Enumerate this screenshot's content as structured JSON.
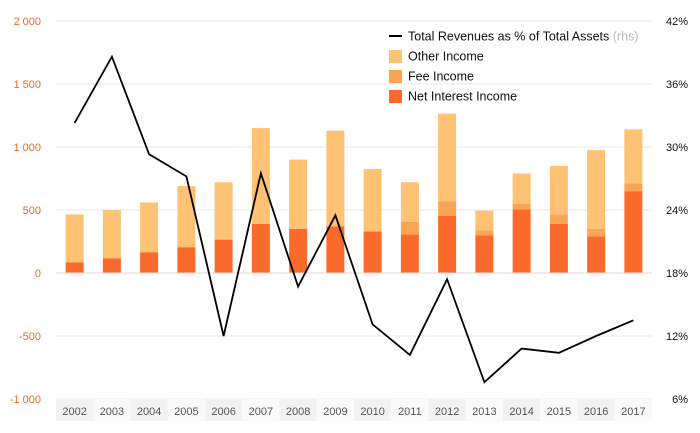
{
  "chart_data": {
    "type": "bar",
    "categories": [
      "2002",
      "2003",
      "2004",
      "2005",
      "2006",
      "2007",
      "2008",
      "2009",
      "2010",
      "2011",
      "2012",
      "2013",
      "2014",
      "2015",
      "2016",
      "2017"
    ],
    "series": [
      {
        "name": "Net Interest Income",
        "kind": "stacked-bar",
        "axis": "left",
        "color": "#fb6a2a",
        "values": [
          85,
          115,
          165,
          205,
          265,
          390,
          350,
          370,
          330,
          305,
          455,
          300,
          505,
          390,
          290,
          650
        ]
      },
      {
        "name": "Fee Income",
        "kind": "stacked-bar",
        "axis": "left",
        "color": "#fca456",
        "values": [
          0,
          0,
          0,
          0,
          0,
          0,
          0,
          0,
          0,
          100,
          115,
          40,
          45,
          75,
          60,
          60
        ]
      },
      {
        "name": "Other Income",
        "kind": "stacked-bar",
        "axis": "left",
        "color": "#fdc274",
        "values": [
          380,
          385,
          395,
          485,
          455,
          760,
          550,
          760,
          495,
          315,
          695,
          155,
          240,
          385,
          625,
          430
        ]
      },
      {
        "name": "Total Revenues as % of Total Assets",
        "name_note": "(rhs)",
        "kind": "line",
        "axis": "right",
        "color": "#000000",
        "values": [
          32.3,
          38.6,
          29.3,
          27.2,
          12.0,
          27.5,
          16.7,
          23.5,
          13.1,
          10.2,
          17.4,
          7.6,
          10.8,
          10.4,
          12.0,
          13.5
        ]
      }
    ],
    "y_left": {
      "ticks": [
        "2 000",
        "1 500",
        "1 000",
        "500",
        "0",
        "-500",
        "-1 000"
      ],
      "range": [
        -1000,
        2000
      ]
    },
    "y_right": {
      "ticks": [
        "42%",
        "36%",
        "30%",
        "24%",
        "18%",
        "12%",
        "6%"
      ],
      "range": [
        6,
        42
      ]
    },
    "legend_order": [
      "Total Revenues as % of Total Assets",
      "Other Income",
      "Fee Income",
      "Net Interest Income"
    ],
    "legend_position": "top-right",
    "grid": "horizontal"
  }
}
